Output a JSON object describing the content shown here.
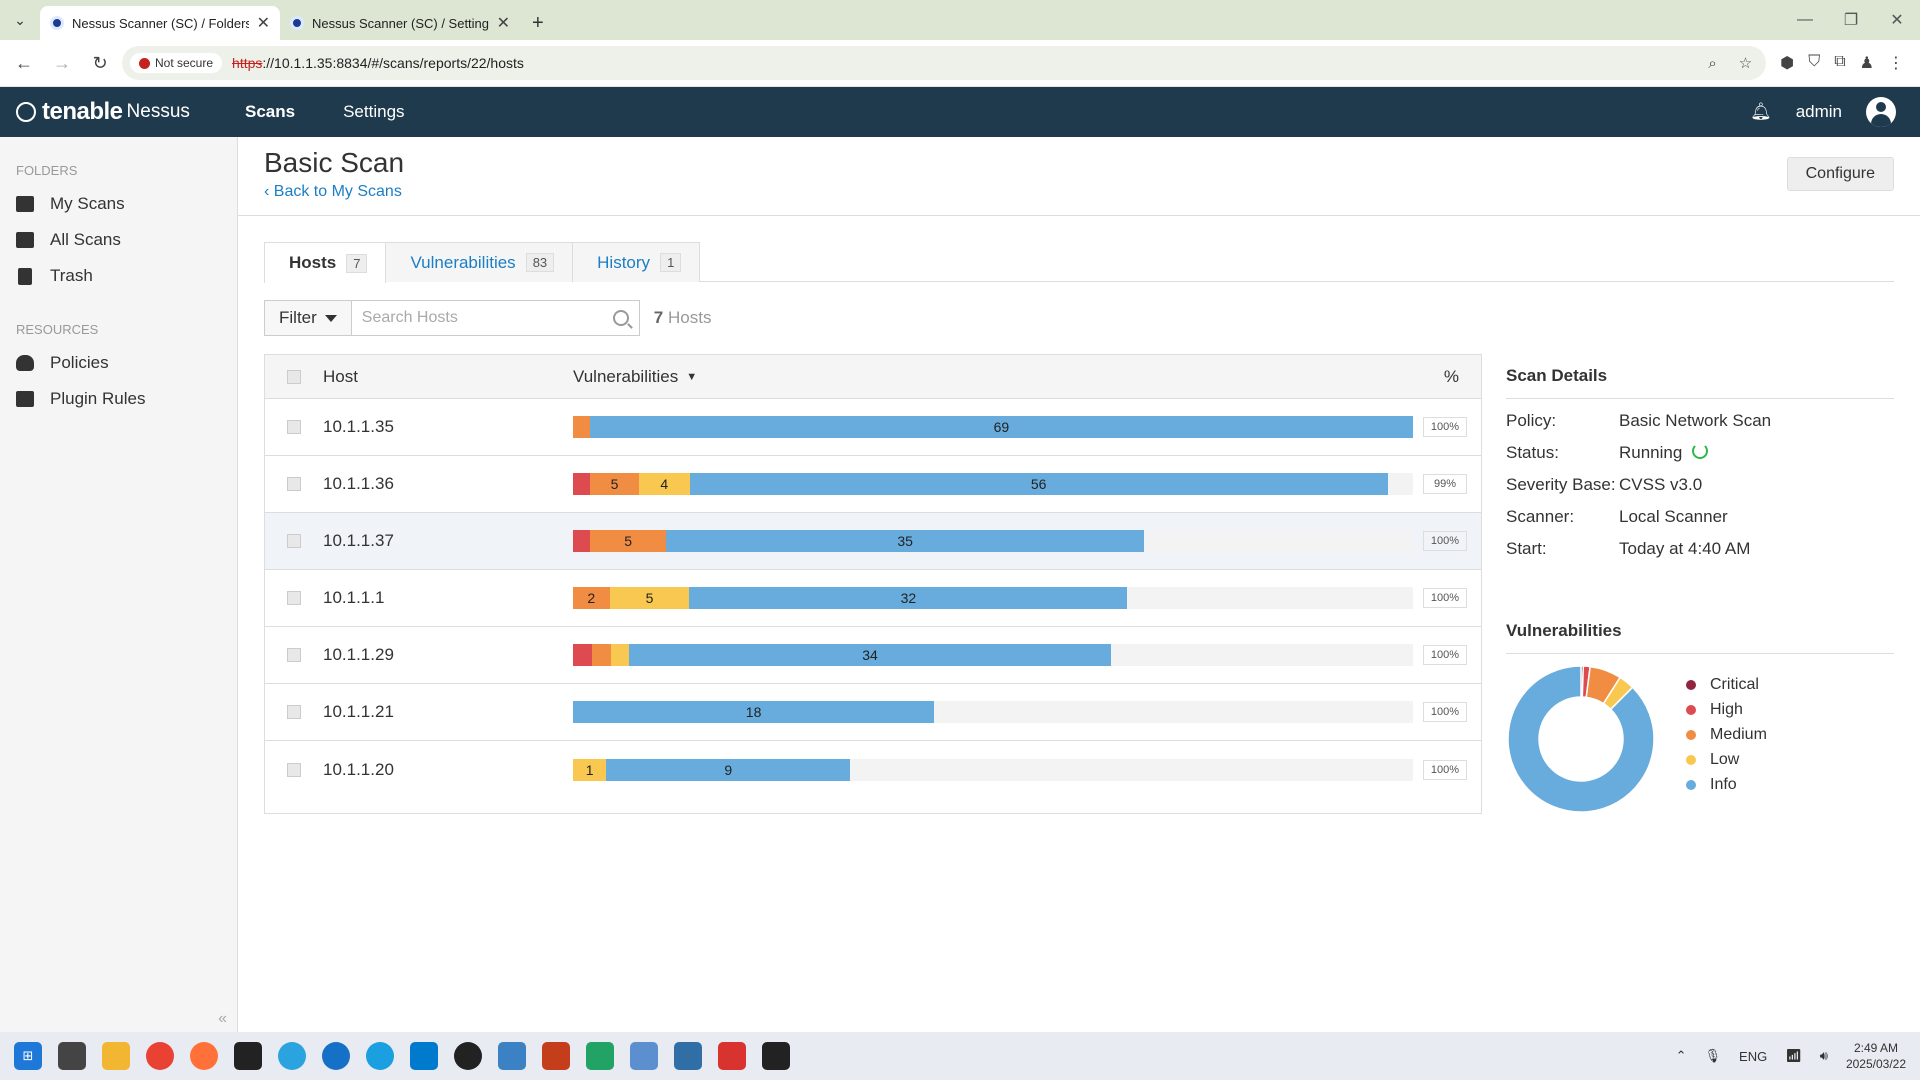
{
  "browser": {
    "tabs": [
      {
        "title": "Nessus Scanner (SC) / Folders /"
      },
      {
        "title": "Nessus Scanner (SC) / Settings"
      }
    ],
    "not_secure": "Not secure",
    "url_scheme": "https",
    "url_rest": "://10.1.1.35:8834/#/scans/reports/22/hosts"
  },
  "header": {
    "brand": "tenable",
    "product": "Nessus",
    "nav": [
      "Scans",
      "Settings"
    ],
    "user": "admin"
  },
  "sidebar": {
    "folders_label": "FOLDERS",
    "folders": [
      "My Scans",
      "All Scans",
      "Trash"
    ],
    "resources_label": "RESOURCES",
    "resources": [
      "Policies",
      "Plugin Rules"
    ]
  },
  "page": {
    "title": "Basic Scan",
    "back": "Back to My Scans",
    "configure": "Configure",
    "tabs": [
      {
        "label": "Hosts",
        "count": "7"
      },
      {
        "label": "Vulnerabilities",
        "count": "83"
      },
      {
        "label": "History",
        "count": "1"
      }
    ],
    "filter": "Filter",
    "search_placeholder": "Search Hosts",
    "hosts_count": "7",
    "hosts_word": "Hosts"
  },
  "colors": {
    "critical": "#91243e",
    "high": "#dd4b50",
    "medium": "#f18c43",
    "low": "#f8c851",
    "info": "#67acdc"
  },
  "table": {
    "headers": {
      "host": "Host",
      "vulns": "Vulnerabilities",
      "pct": "%"
    },
    "rows": [
      {
        "host": "10.1.1.35",
        "pct": "100%",
        "segs": [
          {
            "sev": "medium",
            "frac": 0.02,
            "label": ""
          },
          {
            "sev": "info",
            "frac": 0.98,
            "label": "69"
          }
        ],
        "fill": 1.0
      },
      {
        "host": "10.1.1.36",
        "pct": "99%",
        "segs": [
          {
            "sev": "high",
            "frac": 0.021,
            "label": ""
          },
          {
            "sev": "medium",
            "frac": 0.06,
            "label": "5"
          },
          {
            "sev": "low",
            "frac": 0.062,
            "label": "4"
          },
          {
            "sev": "info",
            "frac": 0.857,
            "label": "56"
          }
        ],
        "fill": 0.97
      },
      {
        "host": "10.1.1.37",
        "pct": "100%",
        "segs": [
          {
            "sev": "high",
            "frac": 0.03,
            "label": ""
          },
          {
            "sev": "medium",
            "frac": 0.133,
            "label": "5"
          },
          {
            "sev": "info",
            "frac": 0.837,
            "label": "35"
          }
        ],
        "fill": 0.68
      },
      {
        "host": "10.1.1.1",
        "pct": "100%",
        "segs": [
          {
            "sev": "medium",
            "frac": 0.066,
            "label": "2"
          },
          {
            "sev": "low",
            "frac": 0.144,
            "label": "5"
          },
          {
            "sev": "info",
            "frac": 0.79,
            "label": "32"
          }
        ],
        "fill": 0.66
      },
      {
        "host": "10.1.1.29",
        "pct": "100%",
        "segs": [
          {
            "sev": "high",
            "frac": 0.035,
            "label": ""
          },
          {
            "sev": "medium",
            "frac": 0.035,
            "label": ""
          },
          {
            "sev": "low",
            "frac": 0.035,
            "label": ""
          },
          {
            "sev": "info",
            "frac": 0.895,
            "label": "34"
          }
        ],
        "fill": 0.64
      },
      {
        "host": "10.1.1.21",
        "pct": "100%",
        "segs": [
          {
            "sev": "info",
            "frac": 1.0,
            "label": "18"
          }
        ],
        "fill": 0.43
      },
      {
        "host": "10.1.1.20",
        "pct": "100%",
        "segs": [
          {
            "sev": "low",
            "frac": 0.12,
            "label": "1"
          },
          {
            "sev": "info",
            "frac": 0.88,
            "label": "9"
          }
        ],
        "fill": 0.33
      }
    ]
  },
  "details": {
    "title": "Scan Details",
    "rows": [
      {
        "k": "Policy:",
        "v": "Basic Network Scan"
      },
      {
        "k": "Status:",
        "v": "Running"
      },
      {
        "k": "Severity Base:",
        "v": "CVSS v3.0"
      },
      {
        "k": "Scanner:",
        "v": "Local Scanner"
      },
      {
        "k": "Start:",
        "v": "Today at 4:40 AM"
      }
    ],
    "vuln_title": "Vulnerabilities",
    "legend": [
      {
        "name": "Critical",
        "sev": "critical"
      },
      {
        "name": "High",
        "sev": "high"
      },
      {
        "name": "Medium",
        "sev": "medium"
      },
      {
        "name": "Low",
        "sev": "low"
      },
      {
        "name": "Info",
        "sev": "info"
      }
    ],
    "donut": [
      {
        "sev": "critical",
        "value": 0.5
      },
      {
        "sev": "high",
        "value": 1.5
      },
      {
        "sev": "medium",
        "value": 7
      },
      {
        "sev": "low",
        "value": 3.5
      },
      {
        "sev": "info",
        "value": 87.5
      }
    ]
  },
  "taskbar": {
    "lang": "ENG",
    "time": "2:49 AM",
    "date": "2025/03/22"
  }
}
